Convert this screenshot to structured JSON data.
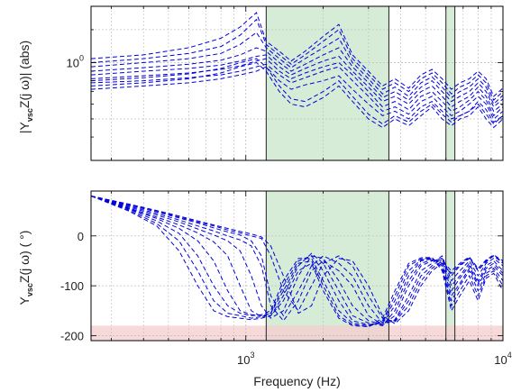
{
  "chart_data": [
    {
      "type": "line",
      "panel": "magnitude",
      "ylabel_parts": [
        "|Y",
        "vsc",
        "Z(j ω)| (abs)"
      ],
      "xscale": "log",
      "yscale": "log",
      "xlim": [
        250,
        10000
      ],
      "ylim": [
        0.3,
        2.0
      ],
      "yticks": [
        {
          "value": 1.0,
          "label": "10",
          "sup": "0"
        }
      ],
      "grid": true,
      "line_style": "dashed",
      "line_color": "#0000dd",
      "highlight_bands": [
        {
          "x": [
            1200,
            3600
          ],
          "color": "#c8e6c8"
        },
        {
          "x": [
            6000,
            6500
          ],
          "color": "#c8e6c8"
        }
      ],
      "vertical_lines": [
        1200,
        3600,
        6000,
        6500
      ],
      "series_description": "many dashed blue frequency responses",
      "x_points": [
        250,
        400,
        600,
        800,
        950,
        1100,
        1200,
        1350,
        1500,
        1700,
        2000,
        2300,
        2600,
        3000,
        3400,
        3800,
        4300,
        4800,
        5300,
        5800,
        6300,
        6800,
        7400,
        8000,
        8600,
        9200,
        10000
      ],
      "series": [
        {
          "values": [
            0.72,
            0.75,
            0.78,
            0.82,
            0.86,
            0.9,
            0.95,
            0.8,
            0.72,
            0.76,
            0.8,
            0.85,
            0.72,
            0.6,
            0.52,
            0.55,
            0.5,
            0.58,
            0.62,
            0.55,
            0.5,
            0.52,
            0.55,
            0.62,
            0.56,
            0.48,
            0.52
          ]
        },
        {
          "values": [
            0.78,
            0.8,
            0.83,
            0.86,
            0.9,
            0.95,
            0.98,
            0.86,
            0.78,
            0.83,
            0.9,
            0.95,
            0.8,
            0.66,
            0.55,
            0.58,
            0.53,
            0.62,
            0.66,
            0.58,
            0.52,
            0.55,
            0.6,
            0.66,
            0.6,
            0.5,
            0.55
          ]
        },
        {
          "values": [
            0.82,
            0.85,
            0.88,
            0.92,
            0.96,
            1.02,
            1.05,
            0.9,
            0.82,
            0.88,
            0.95,
            1.0,
            0.86,
            0.7,
            0.58,
            0.62,
            0.56,
            0.66,
            0.7,
            0.62,
            0.55,
            0.58,
            0.63,
            0.7,
            0.63,
            0.52,
            0.58
          ]
        },
        {
          "values": [
            0.86,
            0.9,
            0.93,
            0.97,
            1.02,
            1.08,
            1.1,
            0.95,
            0.86,
            0.93,
            1.02,
            1.08,
            0.9,
            0.74,
            0.62,
            0.66,
            0.6,
            0.7,
            0.75,
            0.66,
            0.58,
            0.62,
            0.66,
            0.74,
            0.66,
            0.55,
            0.6
          ]
        },
        {
          "values": [
            0.9,
            0.94,
            0.98,
            1.03,
            1.1,
            1.2,
            1.15,
            1.0,
            0.9,
            0.98,
            1.1,
            1.2,
            0.95,
            0.78,
            0.65,
            0.7,
            0.63,
            0.74,
            0.8,
            0.7,
            0.62,
            0.66,
            0.7,
            0.78,
            0.7,
            0.58,
            0.64
          ]
        },
        {
          "values": [
            0.95,
            1.0,
            1.05,
            1.12,
            1.25,
            1.45,
            1.2,
            1.05,
            0.94,
            1.05,
            1.2,
            1.35,
            1.0,
            0.82,
            0.68,
            0.74,
            0.66,
            0.78,
            0.84,
            0.74,
            0.65,
            0.7,
            0.74,
            0.82,
            0.74,
            0.6,
            0.67
          ]
        },
        {
          "values": [
            1.0,
            1.05,
            1.12,
            1.22,
            1.4,
            1.7,
            1.25,
            1.1,
            0.98,
            1.1,
            1.3,
            1.5,
            1.05,
            0.86,
            0.72,
            0.78,
            0.7,
            0.82,
            0.88,
            0.78,
            0.68,
            0.74,
            0.78,
            0.86,
            0.78,
            0.63,
            0.7
          ]
        },
        {
          "values": [
            1.05,
            1.1,
            1.2,
            1.35,
            1.55,
            1.85,
            1.3,
            1.15,
            1.02,
            1.15,
            1.38,
            1.6,
            1.1,
            0.9,
            0.75,
            0.82,
            0.73,
            0.86,
            0.92,
            0.82,
            0.72,
            0.78,
            0.82,
            0.9,
            0.82,
            0.66,
            0.73
          ]
        },
        {
          "values": [
            0.75,
            0.78,
            0.82,
            0.88,
            0.95,
            1.0,
            0.9,
            0.7,
            0.6,
            0.58,
            0.65,
            0.75,
            0.62,
            0.5,
            0.45,
            0.5,
            0.46,
            0.52,
            0.58,
            0.5,
            0.46,
            0.5,
            0.52,
            0.58,
            0.5,
            0.45,
            0.5
          ]
        },
        {
          "values": [
            0.8,
            0.83,
            0.87,
            0.93,
            1.0,
            1.05,
            0.95,
            0.75,
            0.64,
            0.62,
            0.7,
            0.8,
            0.66,
            0.53,
            0.47,
            0.52,
            0.48,
            0.55,
            0.6,
            0.53,
            0.48,
            0.52,
            0.55,
            0.6,
            0.53,
            0.47,
            0.52
          ]
        }
      ]
    },
    {
      "type": "line",
      "panel": "phase",
      "ylabel_parts": [
        "Y",
        "vsc",
        "Z(j ω) ( °)"
      ],
      "xscale": "log",
      "xlim": [
        250,
        10000
      ],
      "ylim": [
        -210,
        90
      ],
      "yticks": [
        0,
        -100,
        -200
      ],
      "ytick_labels": [
        "0",
        "-100",
        "-200"
      ],
      "xticks": [
        {
          "value": 1000,
          "label": "10",
          "sup": "3"
        },
        {
          "value": 10000,
          "label": "10",
          "sup": "4"
        }
      ],
      "xlabel": "Frequency (Hz)",
      "grid": true,
      "line_style": "dashed",
      "line_color": "#0000dd",
      "highlight_bands": [
        {
          "x": [
            1200,
            3600
          ],
          "color": "#c8e6c8"
        },
        {
          "x": [
            6000,
            6500
          ],
          "color": "#c8e6c8"
        }
      ],
      "bottom_band": {
        "y": [
          -210,
          -180
        ],
        "color": "#f5d0d0"
      },
      "vertical_lines": [
        1200,
        3600,
        6000,
        6500
      ],
      "x_points": [
        250,
        350,
        450,
        550,
        650,
        750,
        850,
        950,
        1050,
        1150,
        1250,
        1400,
        1600,
        1800,
        2000,
        2300,
        2600,
        3000,
        3400,
        3800,
        4300,
        4800,
        5300,
        5800,
        6300,
        6800,
        7400,
        8000,
        8600,
        9200,
        10000
      ],
      "series": [
        {
          "values": [
            80,
            62,
            48,
            36,
            26,
            16,
            8,
            2,
            -10,
            -40,
            -120,
            -160,
            -110,
            -60,
            -40,
            -55,
            -80,
            -140,
            -175,
            -170,
            -130,
            -80,
            -60,
            -45,
            -80,
            -60,
            -45,
            -70,
            -50,
            -40,
            -55
          ]
        },
        {
          "values": [
            80,
            60,
            45,
            32,
            20,
            10,
            0,
            -8,
            -20,
            -60,
            -140,
            -170,
            -130,
            -70,
            -50,
            -70,
            -100,
            -160,
            -178,
            -168,
            -120,
            -70,
            -55,
            -40,
            -90,
            -70,
            -50,
            -80,
            -55,
            -45,
            -60
          ]
        },
        {
          "values": [
            80,
            58,
            42,
            28,
            14,
            2,
            -10,
            -30,
            -80,
            -140,
            -165,
            -150,
            -80,
            -40,
            -45,
            -90,
            -140,
            -170,
            -178,
            -160,
            -100,
            -60,
            -50,
            -45,
            -100,
            -80,
            -55,
            -90,
            -60,
            -50,
            -70
          ]
        },
        {
          "values": [
            80,
            56,
            38,
            22,
            6,
            -12,
            -40,
            -100,
            -150,
            -162,
            -160,
            -120,
            -60,
            -35,
            -55,
            -110,
            -160,
            -175,
            -180,
            -150,
            -90,
            -55,
            -48,
            -50,
            -110,
            -85,
            -60,
            -95,
            -65,
            -55,
            -75
          ]
        },
        {
          "values": [
            80,
            55,
            35,
            15,
            -10,
            -50,
            -110,
            -150,
            -158,
            -160,
            -155,
            -100,
            -50,
            -40,
            -70,
            -130,
            -170,
            -178,
            -175,
            -140,
            -80,
            -50,
            -46,
            -55,
            -120,
            -95,
            -65,
            -100,
            -70,
            -60,
            -80
          ]
        },
        {
          "values": [
            80,
            54,
            30,
            5,
            -40,
            -100,
            -140,
            -155,
            -160,
            -158,
            -150,
            -90,
            -45,
            -45,
            -90,
            -150,
            -175,
            -180,
            -172,
            -130,
            -70,
            -48,
            -45,
            -60,
            -130,
            -100,
            -70,
            -110,
            -75,
            -65,
            -90
          ]
        },
        {
          "values": [
            80,
            52,
            25,
            -10,
            -70,
            -130,
            -155,
            -160,
            -165,
            -162,
            -155,
            -110,
            -55,
            -50,
            -100,
            -160,
            -178,
            -182,
            -170,
            -120,
            -60,
            -46,
            -44,
            -65,
            -140,
            -110,
            -80,
            -120,
            -80,
            -70,
            -100
          ]
        },
        {
          "values": [
            80,
            50,
            20,
            -30,
            -100,
            -150,
            -162,
            -165,
            -168,
            -165,
            -160,
            -130,
            -70,
            -55,
            -110,
            -165,
            -180,
            -182,
            -165,
            -110,
            -55,
            -44,
            -43,
            -70,
            -150,
            -120,
            -90,
            -130,
            -85,
            -75,
            -110
          ]
        },
        {
          "values": [
            80,
            63,
            50,
            38,
            28,
            20,
            12,
            6,
            0,
            -5,
            -40,
            -110,
            -150,
            -100,
            -55,
            -40,
            -60,
            -120,
            -165,
            -172,
            -140,
            -90,
            -65,
            -50,
            -70,
            -55,
            -42,
            -65,
            -48,
            -38,
            -50
          ]
        },
        {
          "values": [
            80,
            64,
            51,
            40,
            30,
            22,
            15,
            9,
            4,
            -2,
            -20,
            -80,
            -155,
            -140,
            -80,
            -45,
            -50,
            -100,
            -160,
            -176,
            -150,
            -100,
            -70,
            -55,
            -75,
            -58,
            -44,
            -68,
            -52,
            -40,
            -52
          ]
        }
      ]
    }
  ]
}
